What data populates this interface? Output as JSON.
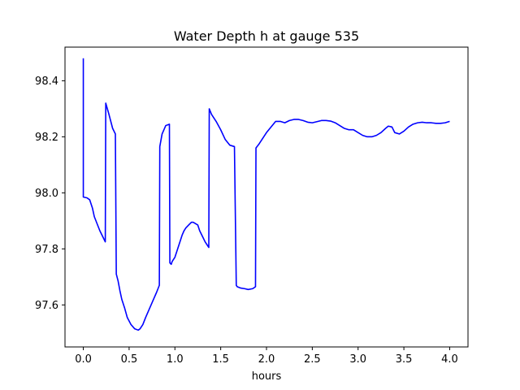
{
  "chart_data": {
    "type": "line",
    "title": "Water Depth h at gauge 535",
    "xlabel": "hours",
    "ylabel": "",
    "xlim": [
      -0.2,
      4.2
    ],
    "ylim": [
      97.45,
      98.52
    ],
    "x_ticks": [
      0.0,
      0.5,
      1.0,
      1.5,
      2.0,
      2.5,
      3.0,
      3.5,
      4.0
    ],
    "x_tick_labels": [
      "0.0",
      "0.5",
      "1.0",
      "1.5",
      "2.0",
      "2.5",
      "3.0",
      "3.5",
      "4.0"
    ],
    "y_ticks": [
      97.6,
      97.8,
      98.0,
      98.2,
      98.4
    ],
    "y_tick_labels": [
      "97.6",
      "97.8",
      "98.0",
      "98.2",
      "98.4"
    ],
    "grid": false,
    "legend": "none",
    "series": [
      {
        "color": "#0000ff",
        "x": [
          0.0,
          0.0,
          0.04,
          0.07,
          0.1,
          0.12,
          0.15,
          0.18,
          0.21,
          0.24,
          0.245,
          0.28,
          0.32,
          0.35,
          0.36,
          0.38,
          0.4,
          0.42,
          0.45,
          0.48,
          0.52,
          0.56,
          0.6,
          0.62,
          0.65,
          0.68,
          0.72,
          0.76,
          0.8,
          0.83,
          0.835,
          0.86,
          0.9,
          0.94,
          0.945,
          0.96,
          0.97,
          0.98,
          1.0,
          1.02,
          1.05,
          1.08,
          1.1,
          1.12,
          1.15,
          1.18,
          1.2,
          1.25,
          1.27,
          1.3,
          1.33,
          1.37,
          1.375,
          1.4,
          1.45,
          1.5,
          1.55,
          1.6,
          1.65,
          1.67,
          1.68,
          1.72,
          1.76,
          1.8,
          1.85,
          1.88,
          1.885,
          1.92,
          1.96,
          2.0,
          2.05,
          2.1,
          2.15,
          2.2,
          2.25,
          2.3,
          2.35,
          2.4,
          2.45,
          2.5,
          2.55,
          2.6,
          2.65,
          2.7,
          2.75,
          2.8,
          2.85,
          2.9,
          2.95,
          3.0,
          3.05,
          3.1,
          3.15,
          3.2,
          3.25,
          3.3,
          3.33,
          3.37,
          3.4,
          3.45,
          3.5,
          3.55,
          3.6,
          3.65,
          3.7,
          3.75,
          3.8,
          3.85,
          3.9,
          3.95,
          4.0
        ],
        "y": [
          98.48,
          97.985,
          97.982,
          97.975,
          97.945,
          97.915,
          97.89,
          97.865,
          97.845,
          97.825,
          98.32,
          98.28,
          98.23,
          98.21,
          97.71,
          97.685,
          97.65,
          97.62,
          97.59,
          97.555,
          97.53,
          97.515,
          97.51,
          97.515,
          97.53,
          97.555,
          97.585,
          97.615,
          97.645,
          97.67,
          98.165,
          98.21,
          98.24,
          98.245,
          97.75,
          97.745,
          97.755,
          97.76,
          97.77,
          97.79,
          97.82,
          97.85,
          97.865,
          97.875,
          97.885,
          97.895,
          97.895,
          97.885,
          97.865,
          97.845,
          97.825,
          97.805,
          98.3,
          98.28,
          98.255,
          98.225,
          98.19,
          98.17,
          98.165,
          97.67,
          97.665,
          97.66,
          97.658,
          97.655,
          97.658,
          97.665,
          98.16,
          98.175,
          98.195,
          98.215,
          98.235,
          98.255,
          98.255,
          98.25,
          98.258,
          98.262,
          98.262,
          98.258,
          98.252,
          98.25,
          98.254,
          98.258,
          98.258,
          98.256,
          98.25,
          98.24,
          98.23,
          98.225,
          98.225,
          98.215,
          98.205,
          98.2,
          98.2,
          98.205,
          98.215,
          98.23,
          98.238,
          98.235,
          98.215,
          98.21,
          98.22,
          98.235,
          98.245,
          98.25,
          98.252,
          98.25,
          98.25,
          98.248,
          98.248,
          98.25,
          98.255
        ]
      }
    ]
  }
}
